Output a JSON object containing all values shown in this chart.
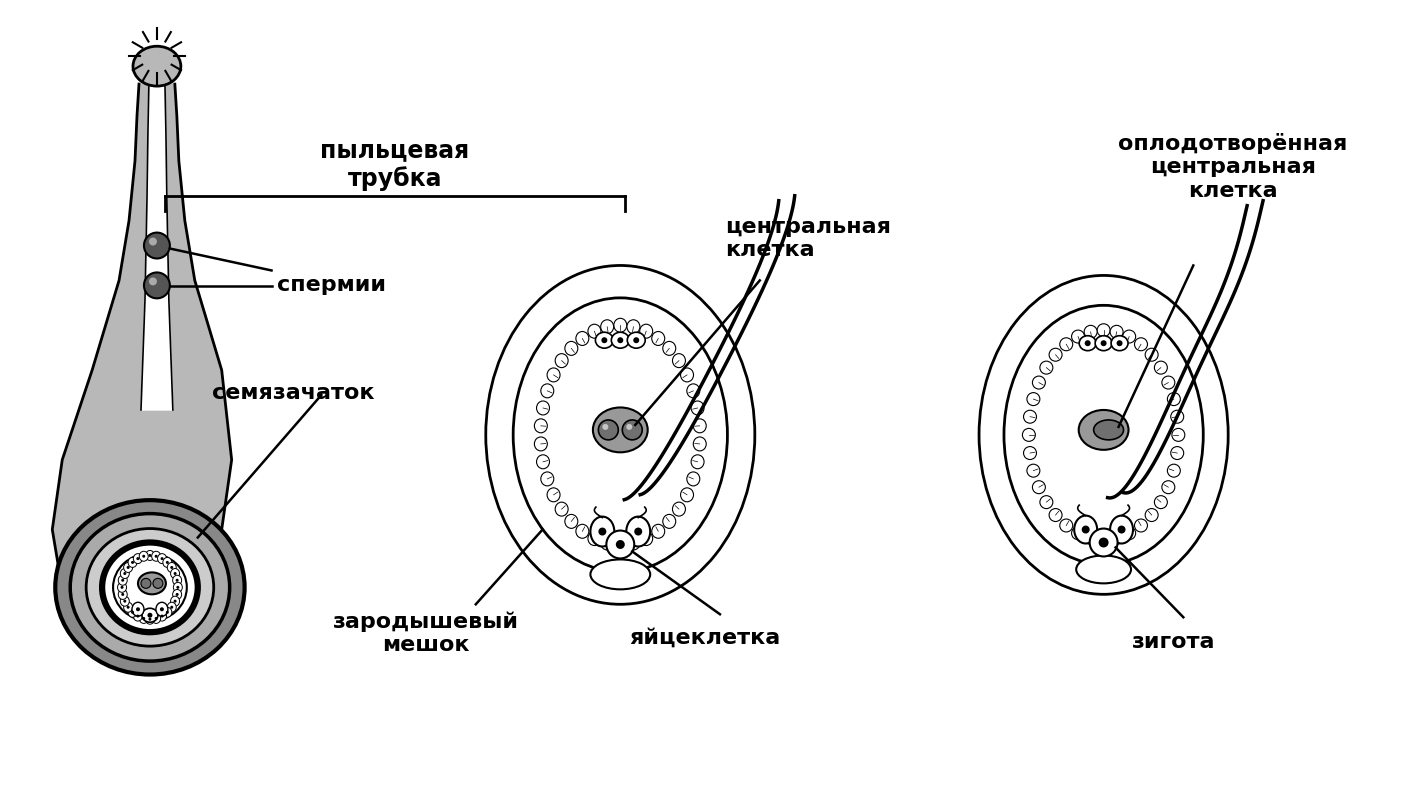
{
  "background_color": "#ffffff",
  "labels": {
    "pyltsevaya_trubka": "пыльцевая\nтрубка",
    "spermii": "спермии",
    "semyazachatok": "семязачаток",
    "tsentralnaya_kletka": "центральная\nклетка",
    "zarodyshevyi_meshok": "зародышевый\nмешок",
    "yaitskletka": "яйцеклетка",
    "oplodotvorennaya": "оплодотворённая\nцентральная\nклетка",
    "zigota": "зигота"
  },
  "gray_shades": {
    "light": "#c8c8c8",
    "medium": "#a0a0a0",
    "dark": "#707070",
    "very_dark": "#404040",
    "cell_fill": "#f0f0f0",
    "central_gray": "#999999",
    "tube_gray": "#b8b8b8",
    "ovule_outer": "#888888",
    "ovule_mid": "#aaaaaa",
    "ovule_light": "#cccccc",
    "sperm_dark": "#555555"
  }
}
